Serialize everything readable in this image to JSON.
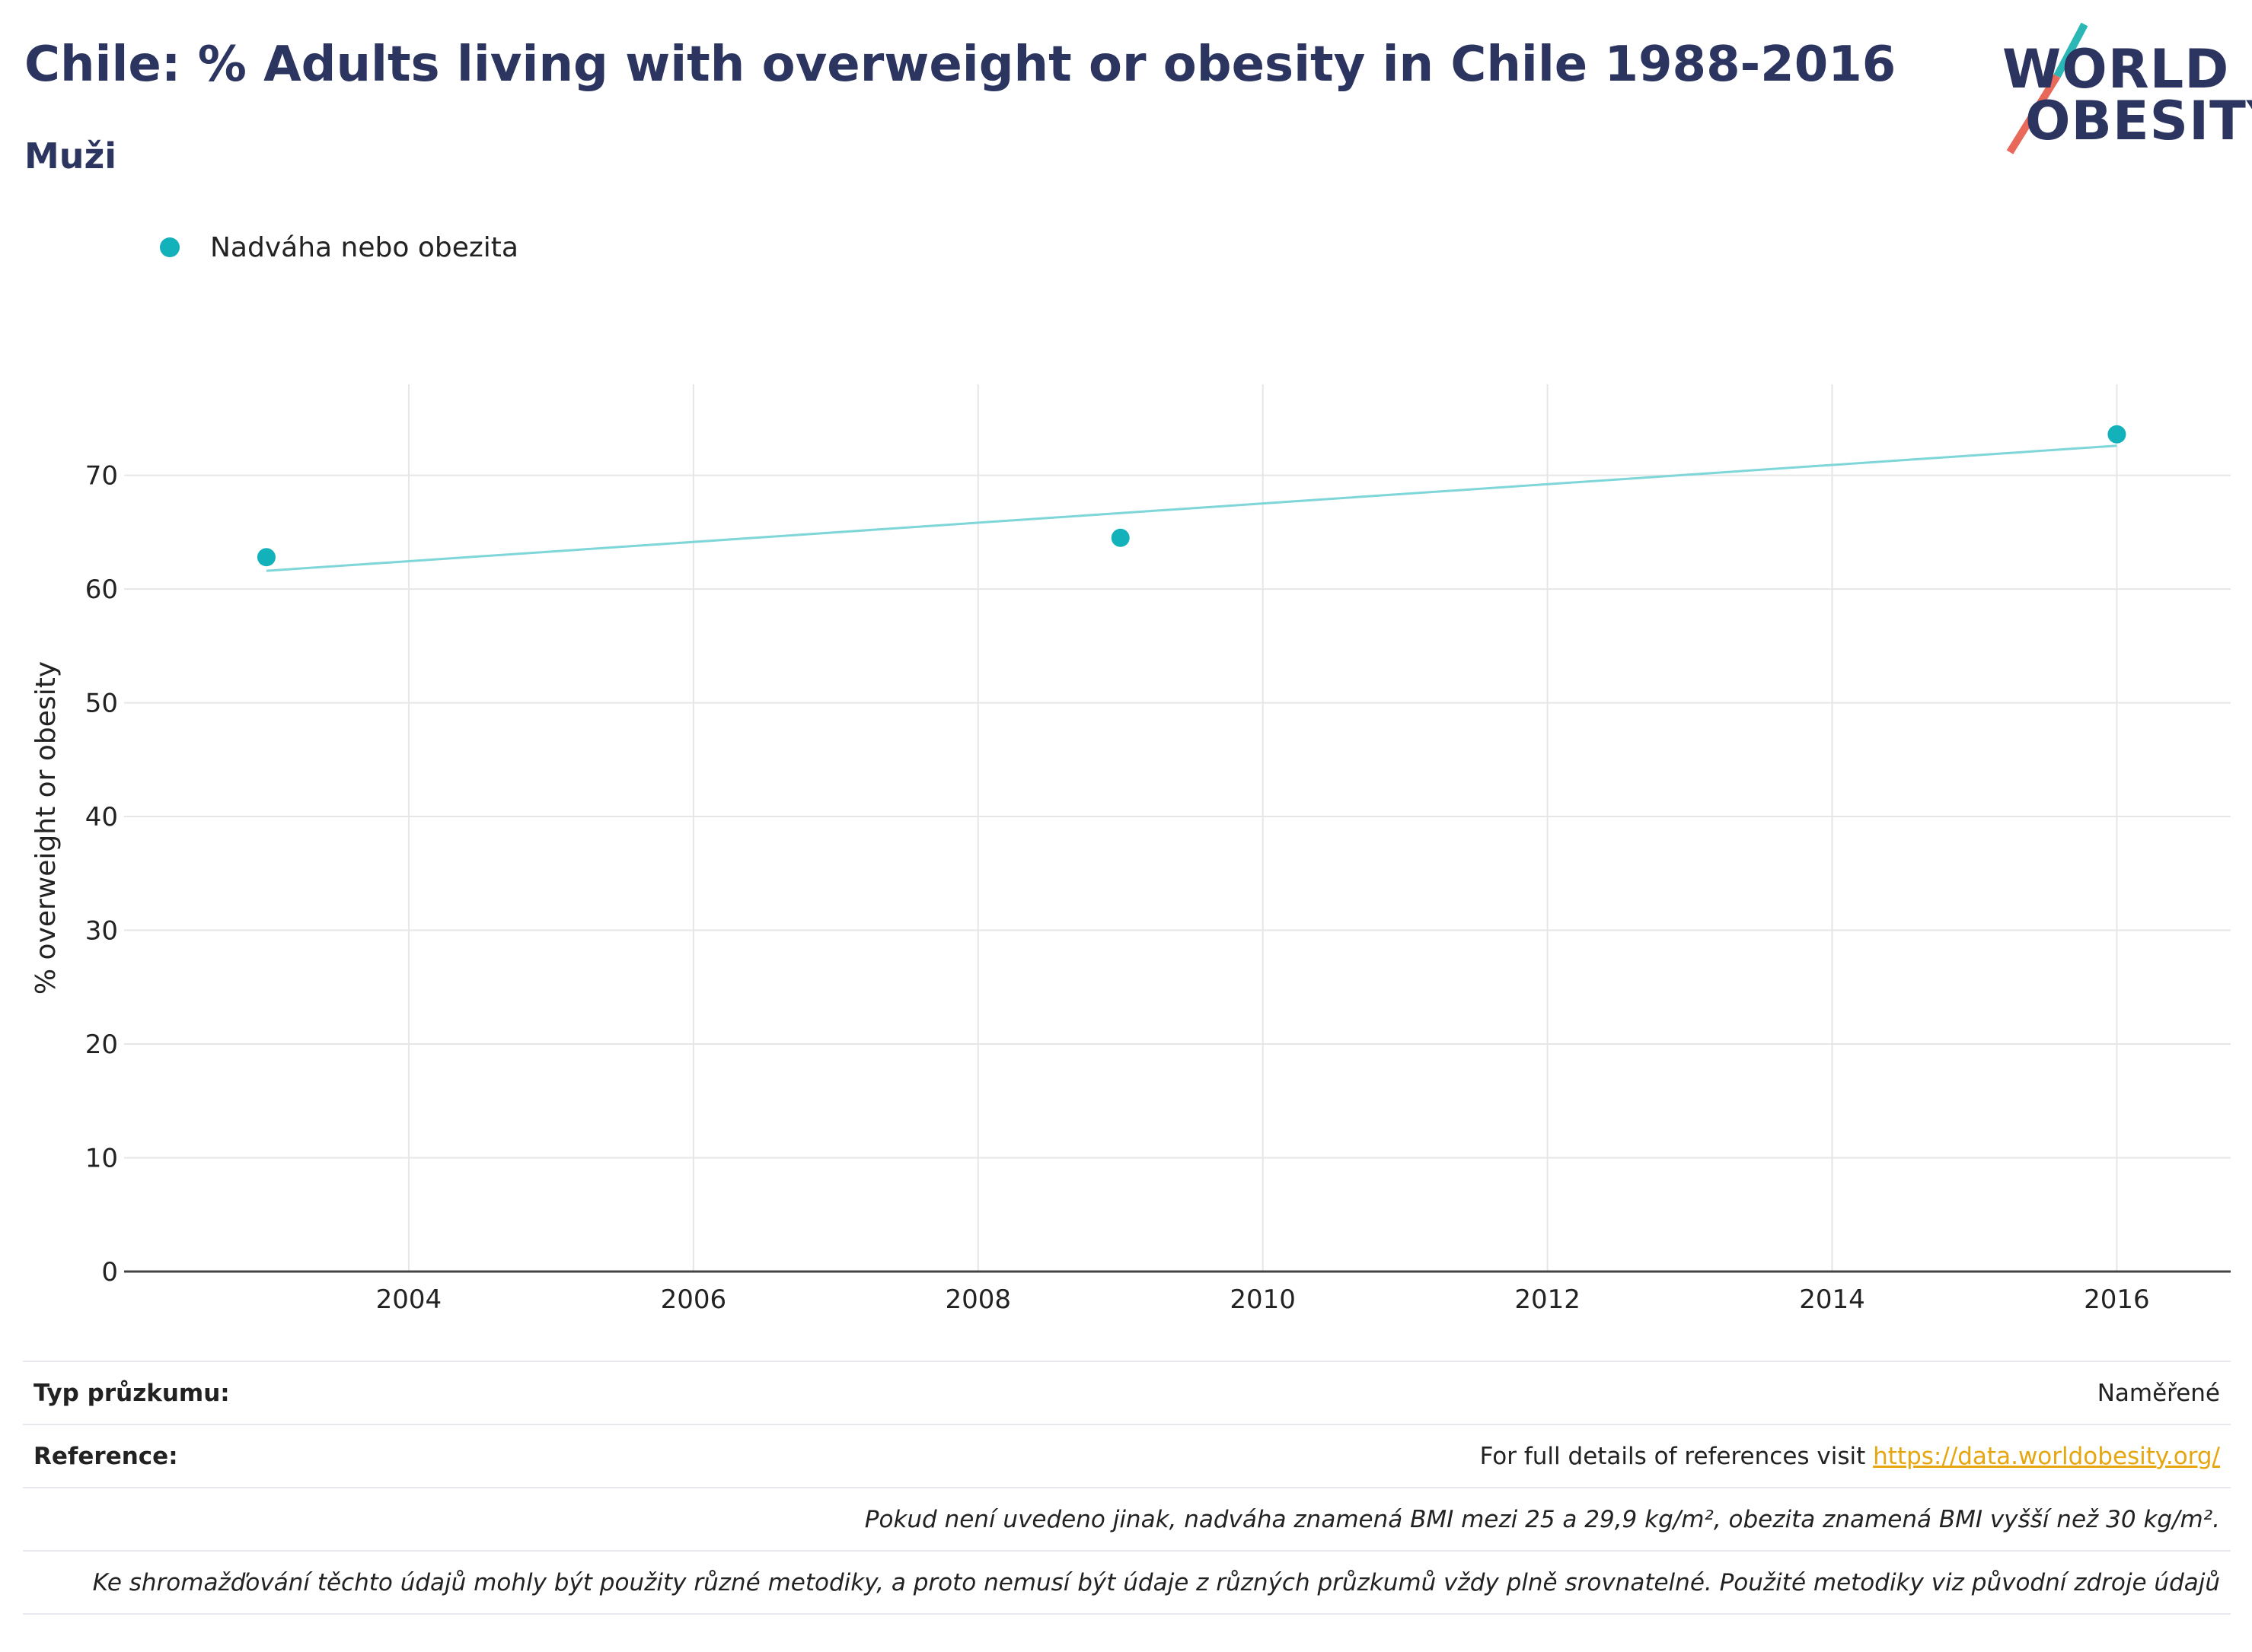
{
  "header": {
    "title": "Chile: % Adults living with overweight or obesity in Chile 1988-2016",
    "subtitle": "Muži"
  },
  "logo": {
    "line1": "WORLD",
    "line2": "OBESITY",
    "accent_teal": "#2ab7b6",
    "accent_coral": "#e8685a"
  },
  "colors": {
    "series": "#13b1b9",
    "trend": "#7fd6d9",
    "grid": "#e6e6e6",
    "text_dark": "#2b3560"
  },
  "chart_data": {
    "type": "scatter",
    "series": [
      {
        "name": "Nadváha nebo obezita",
        "x": [
          2003,
          2009,
          2016
        ],
        "y": [
          62.8,
          64.5,
          73.6
        ]
      }
    ],
    "trendline": {
      "x": [
        2003,
        2016
      ],
      "y": [
        61.6,
        72.6
      ]
    },
    "ylabel": "% overweight or obesity",
    "xlabel": "",
    "xlim": [
      2002,
      2016.8
    ],
    "ylim": [
      0,
      78
    ],
    "xticks": [
      2004,
      2006,
      2008,
      2010,
      2012,
      2014,
      2016
    ],
    "yticks": [
      0,
      10,
      20,
      30,
      40,
      50,
      60,
      70
    ],
    "grid": true,
    "legend_position": "top-left"
  },
  "table": {
    "survey_label": "Typ průzkumu:",
    "survey_value": "Naměřené",
    "reference_label": "Reference:",
    "reference_text": "For full details of references visit ",
    "reference_link": "https://data.worldobesity.org/",
    "note1": "Pokud není uvedeno jinak, nadváha znamená BMI mezi 25 a 29,9 kg/m², obezita znamená BMI vyšší než 30 kg/m².",
    "note2": "Ke shromažďování těchto údajů mohly být použity různé metodiky, a proto nemusí být údaje z různých průzkumů vždy plně srovnatelné. Použité metodiky viz původní zdroje údajů"
  }
}
